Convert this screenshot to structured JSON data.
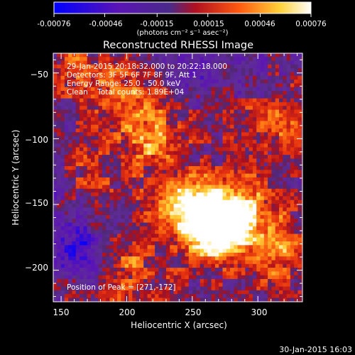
{
  "colorbar": {
    "tick_labels": [
      "-0.00076",
      "-0.00046",
      "-0.00015",
      "0.00015",
      "0.00046",
      "0.00076"
    ],
    "tick_values": [
      -0.00076,
      -0.00046,
      -0.00015,
      0.00015,
      0.00046,
      0.00076
    ],
    "units_label": "(photons cm⁻² s⁻¹ asec⁻²)",
    "range": [
      -0.00076,
      0.00076
    ]
  },
  "image": {
    "title": "Reconstructed RHESSI Image",
    "info_lines": [
      "29-Jan-2015 20:18:32.000 to 20:22:18.000",
      "Detectors: 3F 5F 6F 7F 8F 9F, Att 1",
      "Energy Range: 25.0 - 50.0 keV",
      "Clean    Total counts: 1.89E+04"
    ],
    "peak_label": "Position of Peak = [271,-172]",
    "peak": [
      271,
      -172
    ]
  },
  "axes": {
    "xlabel": "Heliocentric X (arcsec)",
    "ylabel": "Heliocentric Y (arcsec)",
    "xlim": [
      144,
      334
    ],
    "ylim": [
      -224,
      -35
    ],
    "x_ticks": [
      150,
      200,
      250,
      300
    ],
    "y_ticks": [
      -50,
      -100,
      -150,
      -200
    ],
    "x_tick_labels": [
      "150",
      "200",
      "250",
      "300"
    ],
    "y_tick_labels": [
      "−50",
      "−100",
      "−150",
      "−200"
    ]
  },
  "footer": {
    "timestamp": "30-Jan-2015 16:03"
  },
  "chart_data": {
    "type": "heatmap",
    "title": "Reconstructed RHESSI Image",
    "xlabel": "Heliocentric X (arcsec)",
    "ylabel": "Heliocentric Y (arcsec)",
    "xlim": [
      144,
      334
    ],
    "ylim": [
      -224,
      -35
    ],
    "value_range": [
      -0.00076,
      0.00076
    ],
    "colormap": [
      "#0000ff",
      "#6a0fa5",
      "#55309a",
      "#cc1a10",
      "#ff6a10",
      "#ffdc40",
      "#ffffff"
    ],
    "sources": [
      {
        "x": 271,
        "y": -172,
        "value": 0.00076
      },
      {
        "x": 262,
        "y": -160,
        "value": 0.0006
      },
      {
        "x": 290,
        "y": -150,
        "value": 0.00046
      },
      {
        "x": 240,
        "y": -150,
        "value": 0.00045
      },
      {
        "x": 220,
        "y": -100,
        "value": 0.0005
      },
      {
        "x": 195,
        "y": -65,
        "value": 0.0004
      },
      {
        "x": 310,
        "y": -85,
        "value": 0.00045
      },
      {
        "x": 200,
        "y": -200,
        "value": 0.00035
      },
      {
        "x": 320,
        "y": -185,
        "value": 0.00045
      },
      {
        "x": 170,
        "y": -130,
        "value": 0.0003
      },
      {
        "x": 160,
        "y": -45,
        "value": 0.0003
      },
      {
        "x": 165,
        "y": -185,
        "value": -0.00045
      },
      {
        "x": 150,
        "y": -140,
        "value": -0.00025
      },
      {
        "x": 300,
        "y": -60,
        "value": -0.0002
      },
      {
        "x": 255,
        "y": -50,
        "value": -0.00015
      }
    ]
  }
}
